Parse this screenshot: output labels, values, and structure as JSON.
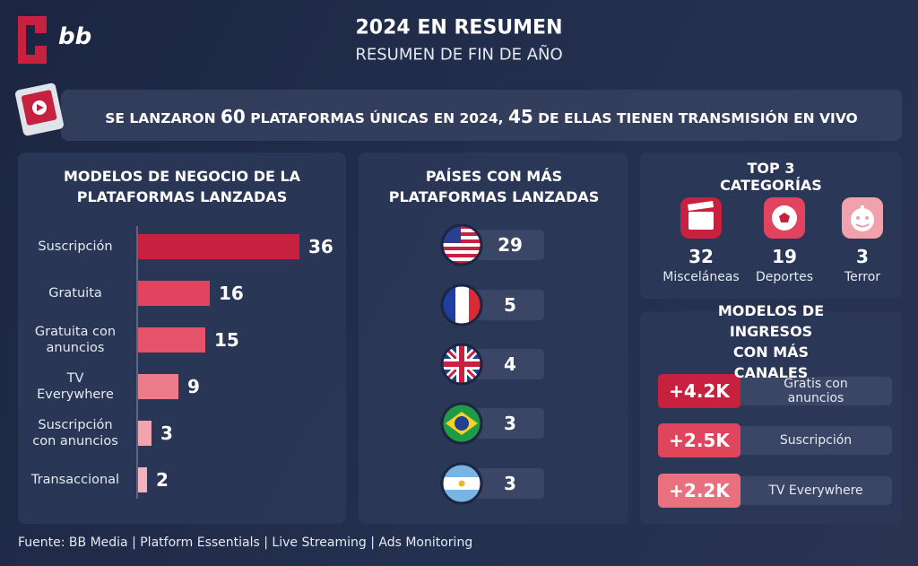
{
  "header": {
    "logo": "bb",
    "title": "2024 EN RESUMEN",
    "subtitle": "RESUMEN DE FIN DE AÑO"
  },
  "banner": {
    "parts": [
      "SE LANZARON ",
      "60",
      " PLATAFORMAS ÚNICAS EN 2024, ",
      "45",
      " DE ELLAS TIENEN TRANSMISIÓN EN VIVO"
    ]
  },
  "chart_data": {
    "type": "bar",
    "orientation": "horizontal",
    "title": "MODELOS DE NEGOCIO DE LA\nPLATAFORMAS LANZADAS",
    "categories": [
      "Suscripción",
      "Gratuita",
      "Gratuita con\nanuncios",
      "TV\nEverywhere",
      "Suscripción\ncon anuncios",
      "Transaccional"
    ],
    "values": [
      36,
      16,
      15,
      9,
      3,
      2
    ],
    "colors": [
      "#c8213f",
      "#e2435e",
      "#e5526a",
      "#ec7c8a",
      "#f2a4ae",
      "#f4b3bc"
    ],
    "xlim": [
      0,
      40
    ]
  },
  "countries": {
    "title": "PAÍSES CON MÁS\nPLATAFORMAS LANZADAS",
    "values": [
      29,
      5,
      4,
      3,
      3
    ]
  },
  "top_categories": {
    "title": "TOP 3 CATEGORÍAS",
    "items": [
      {
        "value": 32,
        "label": "Misceláneas"
      },
      {
        "value": 19,
        "label": "Deportes"
      },
      {
        "value": 3,
        "label": "Terror"
      }
    ]
  },
  "revenue": {
    "title": "MODELOS DE INGRESOS\nCON MÁS CANALES",
    "items": [
      {
        "value": "+4.2K",
        "label": "Gratis con anuncios",
        "color": "#c8213f"
      },
      {
        "value": "+2.5K",
        "label": "Suscripción",
        "color": "#e0455e"
      },
      {
        "value": "+2.2K",
        "label": "TV Everywhere",
        "color": "#e8707f"
      }
    ]
  },
  "footer": "Fuente: BB Media | Platform Essentials | Live Streaming | Ads Monitoring"
}
